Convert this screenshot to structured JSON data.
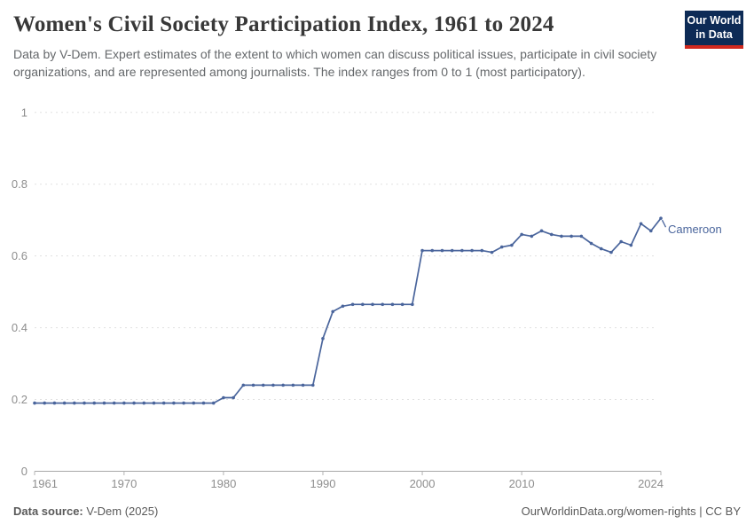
{
  "header": {
    "title": "Women's Civil Society Participation Index, 1961 to 2024",
    "subtitle": "Data by V-Dem. Expert estimates of the extent to which women can discuss political issues, participate in civil society organizations, and are represented among journalists. The index ranges from 0 to 1 (most participatory).",
    "logo": {
      "line1": "Our World",
      "line2": "in Data",
      "bg_color": "#0d2b56",
      "accent_color": "#d0281e"
    }
  },
  "chart_data": {
    "type": "line",
    "title": "Women's Civil Society Participation Index, 1961 to 2024",
    "xlabel": "",
    "ylabel": "",
    "ylim": [
      0,
      1
    ],
    "yticks": [
      0,
      0.2,
      0.4,
      0.6,
      0.8,
      1
    ],
    "ytick_labels": [
      "0",
      "0.2",
      "0.4",
      "0.6",
      "0.8",
      "1"
    ],
    "xticks": [
      1961,
      1970,
      1980,
      1990,
      2000,
      2010,
      2024
    ],
    "grid": "horizontal-dashed",
    "legend_position": "end-of-line-label",
    "line_color": "#4a659c",
    "series": [
      {
        "name": "Cameroon",
        "color": "#4a659c",
        "x": [
          1961,
          1962,
          1963,
          1964,
          1965,
          1966,
          1967,
          1968,
          1969,
          1970,
          1971,
          1972,
          1973,
          1974,
          1975,
          1976,
          1977,
          1978,
          1979,
          1980,
          1981,
          1982,
          1983,
          1984,
          1985,
          1986,
          1987,
          1988,
          1989,
          1990,
          1991,
          1992,
          1993,
          1994,
          1995,
          1996,
          1997,
          1998,
          1999,
          2000,
          2001,
          2002,
          2003,
          2004,
          2005,
          2006,
          2007,
          2008,
          2009,
          2010,
          2011,
          2012,
          2013,
          2014,
          2015,
          2016,
          2017,
          2018,
          2019,
          2020,
          2021,
          2022,
          2023,
          2024
        ],
        "values": [
          0.19,
          0.19,
          0.19,
          0.19,
          0.19,
          0.19,
          0.19,
          0.19,
          0.19,
          0.19,
          0.19,
          0.19,
          0.19,
          0.19,
          0.19,
          0.19,
          0.19,
          0.19,
          0.19,
          0.205,
          0.205,
          0.24,
          0.24,
          0.24,
          0.24,
          0.24,
          0.24,
          0.24,
          0.24,
          0.37,
          0.445,
          0.46,
          0.465,
          0.465,
          0.465,
          0.465,
          0.465,
          0.465,
          0.465,
          0.615,
          0.615,
          0.615,
          0.615,
          0.615,
          0.615,
          0.615,
          0.61,
          0.625,
          0.63,
          0.66,
          0.655,
          0.67,
          0.66,
          0.655,
          0.655,
          0.655,
          0.635,
          0.62,
          0.61,
          0.64,
          0.63,
          0.69,
          0.67,
          0.705
        ]
      }
    ]
  },
  "footer": {
    "source_label": "Data source:",
    "source_value": " V-Dem (2025)",
    "credit": "OurWorldinData.org/women-rights | CC BY"
  }
}
